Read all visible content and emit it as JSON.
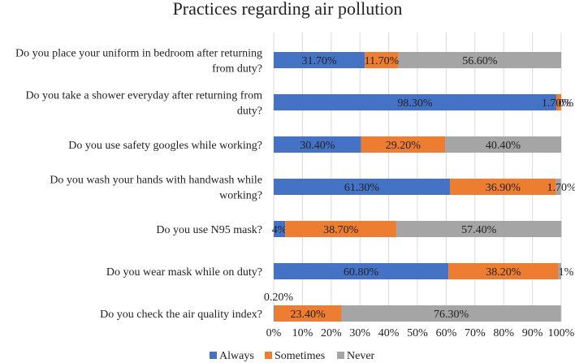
{
  "chart_data": {
    "type": "bar",
    "orientation": "horizontal",
    "stacked": true,
    "title": "Practices regarding air pollution",
    "categories": [
      [
        "Do you place your uniform in bedroom after returning",
        "from duty?"
      ],
      [
        "Do you take a shower everyday after returning from",
        "duty?"
      ],
      [
        "Do you use safety googles while working?"
      ],
      [
        "Do you wash your hands with handwash while",
        "working?"
      ],
      [
        "Do you use N95 mask?"
      ],
      [
        "Do you wear mask while on duty?"
      ],
      [
        "Do you check the air quality index?"
      ]
    ],
    "series": [
      {
        "name": "Always",
        "color": "#4472C4",
        "values": [
          31.7,
          98.3,
          30.4,
          61.3,
          4,
          60.8,
          0.2
        ],
        "labels": [
          "31.70%",
          "98.30%",
          "30.40%",
          "61.30%",
          "4%",
          "60.80%",
          "0.20%"
        ]
      },
      {
        "name": "Sometimes",
        "color": "#ED7D31",
        "values": [
          11.7,
          1.7,
          29.2,
          36.9,
          38.7,
          38.2,
          23.4
        ],
        "labels": [
          "11.70%",
          "1.70%",
          "29.20%",
          "36.90%",
          "38.70%",
          "38.20%",
          "23.40%"
        ]
      },
      {
        "name": "Never",
        "color": "#A5A5A5",
        "values": [
          56.6,
          0,
          40.4,
          1.7,
          57.4,
          1,
          76.3
        ],
        "labels": [
          "56.60%",
          "0%",
          "40.40%",
          "1.70%",
          "57.40%",
          "1%",
          "76.30%"
        ]
      }
    ],
    "xticks": [
      "0%",
      "10%",
      "20%",
      "30%",
      "40%",
      "50%",
      "60%",
      "70%",
      "80%",
      "90%",
      "100%"
    ],
    "xlim": [
      0,
      100
    ],
    "legend_position": "bottom"
  }
}
